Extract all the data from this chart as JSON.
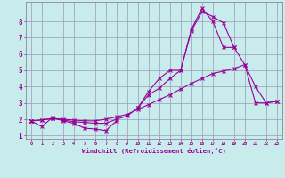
{
  "xlabel": "Windchill (Refroidissement éolien,°C)",
  "background_color": "#c8ecec",
  "line_color": "#990099",
  "grid_color": "#9999bb",
  "x": [
    0,
    1,
    2,
    3,
    4,
    5,
    6,
    7,
    8,
    9,
    10,
    11,
    12,
    13,
    14,
    15,
    16,
    17,
    18,
    19,
    20,
    21,
    22,
    23
  ],
  "line1": [
    1.9,
    1.55,
    2.1,
    1.9,
    1.75,
    1.45,
    1.4,
    1.3,
    1.9,
    null,
    null,
    null,
    null,
    null,
    null,
    null,
    null,
    null,
    null,
    null,
    null,
    null,
    null,
    null
  ],
  "line2": [
    1.9,
    1.95,
    2.05,
    2.0,
    1.95,
    1.9,
    1.9,
    2.0,
    2.15,
    2.3,
    2.6,
    2.9,
    3.2,
    3.5,
    3.85,
    4.2,
    4.5,
    4.8,
    4.95,
    5.1,
    5.35,
    3.0,
    3.0,
    3.1
  ],
  "line3": [
    1.9,
    1.95,
    2.05,
    1.95,
    1.85,
    1.8,
    1.75,
    1.75,
    2.0,
    2.2,
    2.7,
    3.5,
    3.9,
    4.5,
    5.0,
    7.4,
    8.6,
    8.3,
    7.9,
    6.4,
    5.35,
    4.0,
    3.0,
    3.1
  ],
  "line4": [
    1.9,
    null,
    null,
    null,
    null,
    null,
    null,
    null,
    null,
    null,
    2.7,
    3.7,
    4.5,
    5.0,
    5.0,
    7.5,
    8.8,
    8.0,
    6.4,
    6.4,
    null,
    null,
    null,
    null
  ],
  "ylim": [
    0.8,
    9.2
  ],
  "yticks": [
    1,
    2,
    3,
    4,
    5,
    6,
    7,
    8
  ],
  "xlim": [
    -0.5,
    23.5
  ],
  "xticks": [
    0,
    1,
    2,
    3,
    4,
    5,
    6,
    7,
    8,
    9,
    10,
    11,
    12,
    13,
    14,
    15,
    16,
    17,
    18,
    19,
    20,
    21,
    22,
    23
  ]
}
